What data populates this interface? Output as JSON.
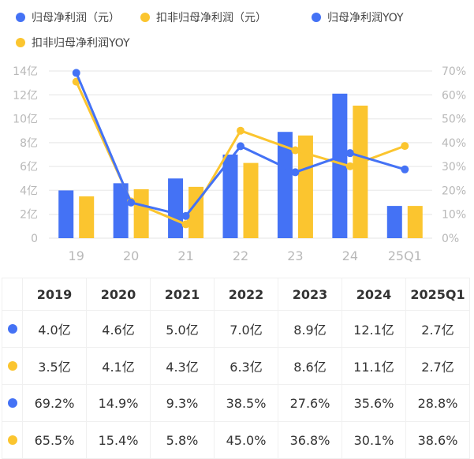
{
  "legend": [
    {
      "label": "归母净利润（元）",
      "color": "#4472f5",
      "icon": "circle-marker"
    },
    {
      "label": "扣非归母净利润（元）",
      "color": "#fbc52f",
      "icon": "circle-marker"
    },
    {
      "label": "归母净利润YOY",
      "color": "#4472f5",
      "icon": "circle-marker"
    },
    {
      "label": "扣非归母净利润YOY",
      "color": "#fbc52f",
      "icon": "circle-marker"
    }
  ],
  "chart_data": {
    "type": "bar",
    "categories": [
      "19",
      "20",
      "21",
      "22",
      "23",
      "24",
      "25Q1"
    ],
    "left_axis": {
      "ticks": [
        "0",
        "2亿",
        "4亿",
        "6亿",
        "8亿",
        "10亿",
        "12亿",
        "14亿"
      ],
      "range": [
        0,
        14
      ],
      "unit": "亿"
    },
    "right_axis": {
      "ticks": [
        "0%",
        "10%",
        "20%",
        "30%",
        "40%",
        "50%",
        "60%",
        "70%"
      ],
      "range": [
        0,
        70
      ],
      "unit": "%"
    },
    "grid": true,
    "legend_position": "top",
    "series": [
      {
        "name": "归母净利润（元）",
        "type": "bar",
        "axis": "left",
        "color": "#4472f5",
        "values": [
          4.0,
          4.6,
          5.0,
          7.0,
          8.9,
          12.1,
          2.7
        ]
      },
      {
        "name": "扣非归母净利润（元）",
        "type": "bar",
        "axis": "left",
        "color": "#fbc52f",
        "values": [
          3.5,
          4.1,
          4.3,
          6.3,
          8.6,
          11.1,
          2.7
        ]
      },
      {
        "name": "归母净利润YOY",
        "type": "line",
        "axis": "right",
        "color": "#4472f5",
        "values": [
          69.2,
          14.9,
          9.3,
          38.5,
          27.6,
          35.6,
          28.8
        ]
      },
      {
        "name": "扣非归母净利润YOY",
        "type": "line",
        "axis": "right",
        "color": "#fbc52f",
        "values": [
          65.5,
          15.4,
          5.8,
          45.0,
          36.8,
          30.1,
          38.6
        ]
      }
    ]
  },
  "table": {
    "headers": [
      "2019",
      "2020",
      "2021",
      "2022",
      "2023",
      "2024",
      "2025Q1"
    ],
    "rows": [
      {
        "color": "#4472f5",
        "cells": [
          "4.0亿",
          "4.6亿",
          "5.0亿",
          "7.0亿",
          "8.9亿",
          "12.1亿",
          "2.7亿"
        ]
      },
      {
        "color": "#fbc52f",
        "cells": [
          "3.5亿",
          "4.1亿",
          "4.3亿",
          "6.3亿",
          "8.6亿",
          "11.1亿",
          "2.7亿"
        ]
      },
      {
        "color": "#4472f5",
        "cells": [
          "69.2%",
          "14.9%",
          "9.3%",
          "38.5%",
          "27.6%",
          "35.6%",
          "28.8%"
        ]
      },
      {
        "color": "#fbc52f",
        "cells": [
          "65.5%",
          "15.4%",
          "5.8%",
          "45.0%",
          "36.8%",
          "30.1%",
          "38.6%"
        ]
      }
    ]
  }
}
